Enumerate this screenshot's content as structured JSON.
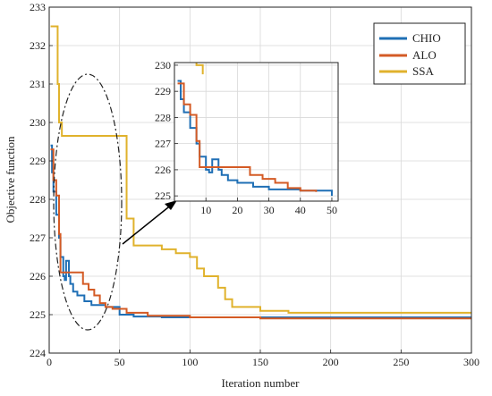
{
  "chart_data": {
    "type": "line",
    "xlabel": "Iteration number",
    "ylabel": "Objective function",
    "xlim": [
      0,
      300
    ],
    "ylim": [
      224,
      233
    ],
    "x_ticks": [
      0,
      50,
      100,
      150,
      200,
      250,
      300
    ],
    "y_ticks": [
      224,
      225,
      226,
      227,
      228,
      229,
      230,
      231,
      232,
      233
    ],
    "grid": true,
    "legend": {
      "position": "top-right",
      "entries": [
        "CHIO",
        "ALO",
        "SSA"
      ]
    },
    "series": [
      {
        "name": "CHIO",
        "color": "#1f6fb5",
        "points": [
          [
            1,
            229.4
          ],
          [
            2,
            229.4
          ],
          [
            2,
            228.7
          ],
          [
            3,
            228.7
          ],
          [
            3,
            228.2
          ],
          [
            5,
            228.2
          ],
          [
            5,
            227.6
          ],
          [
            7,
            227.6
          ],
          [
            7,
            227.0
          ],
          [
            8,
            227.0
          ],
          [
            8,
            226.5
          ],
          [
            10,
            226.5
          ],
          [
            10,
            226.0
          ],
          [
            11,
            226.0
          ],
          [
            11,
            225.9
          ],
          [
            12,
            225.9
          ],
          [
            12,
            226.4
          ],
          [
            14,
            226.4
          ],
          [
            14,
            226.0
          ],
          [
            15,
            226.0
          ],
          [
            15,
            225.8
          ],
          [
            17,
            225.8
          ],
          [
            17,
            225.6
          ],
          [
            20,
            225.6
          ],
          [
            20,
            225.5
          ],
          [
            25,
            225.5
          ],
          [
            25,
            225.35
          ],
          [
            30,
            225.35
          ],
          [
            30,
            225.25
          ],
          [
            40,
            225.25
          ],
          [
            40,
            225.2
          ],
          [
            50,
            225.2
          ],
          [
            50,
            225.0
          ],
          [
            60,
            225.0
          ],
          [
            60,
            224.95
          ],
          [
            80,
            224.95
          ],
          [
            80,
            224.93
          ],
          [
            300,
            224.93
          ]
        ]
      },
      {
        "name": "ALO",
        "color": "#d45b25",
        "points": [
          [
            1,
            229.3
          ],
          [
            3,
            229.3
          ],
          [
            3,
            228.5
          ],
          [
            5,
            228.5
          ],
          [
            5,
            228.1
          ],
          [
            7,
            228.1
          ],
          [
            7,
            227.1
          ],
          [
            8,
            227.1
          ],
          [
            8,
            226.1
          ],
          [
            24,
            226.1
          ],
          [
            24,
            225.8
          ],
          [
            28,
            225.8
          ],
          [
            28,
            225.65
          ],
          [
            32,
            225.65
          ],
          [
            32,
            225.5
          ],
          [
            36,
            225.5
          ],
          [
            36,
            225.3
          ],
          [
            40,
            225.3
          ],
          [
            40,
            225.2
          ],
          [
            45,
            225.2
          ],
          [
            45,
            225.15
          ],
          [
            55,
            225.15
          ],
          [
            55,
            225.05
          ],
          [
            70,
            225.05
          ],
          [
            70,
            224.97
          ],
          [
            100,
            224.97
          ],
          [
            100,
            224.93
          ],
          [
            150,
            224.93
          ],
          [
            150,
            224.9
          ],
          [
            300,
            224.9
          ]
        ]
      },
      {
        "name": "SSA",
        "color": "#e0b22c",
        "points": [
          [
            1,
            232.5
          ],
          [
            6,
            232.5
          ],
          [
            6,
            231.0
          ],
          [
            7,
            231.0
          ],
          [
            7,
            230.0
          ],
          [
            9,
            230.0
          ],
          [
            9,
            229.65
          ],
          [
            55,
            229.65
          ],
          [
            55,
            227.5
          ],
          [
            60,
            227.5
          ],
          [
            60,
            226.8
          ],
          [
            80,
            226.8
          ],
          [
            80,
            226.7
          ],
          [
            90,
            226.7
          ],
          [
            90,
            226.6
          ],
          [
            100,
            226.6
          ],
          [
            100,
            226.5
          ],
          [
            105,
            226.5
          ],
          [
            105,
            226.2
          ],
          [
            110,
            226.2
          ],
          [
            110,
            226.0
          ],
          [
            120,
            226.0
          ],
          [
            120,
            225.7
          ],
          [
            125,
            225.7
          ],
          [
            125,
            225.4
          ],
          [
            130,
            225.4
          ],
          [
            130,
            225.2
          ],
          [
            150,
            225.2
          ],
          [
            150,
            225.1
          ],
          [
            170,
            225.1
          ],
          [
            170,
            225.05
          ],
          [
            300,
            225.05
          ]
        ]
      }
    ],
    "inset": {
      "xlim": [
        0,
        52
      ],
      "ylim": [
        224.8,
        230.1
      ],
      "x_ticks": [
        10,
        20,
        30,
        40,
        50
      ],
      "y_ticks": [
        225,
        226,
        227,
        228,
        229,
        230
      ]
    }
  }
}
